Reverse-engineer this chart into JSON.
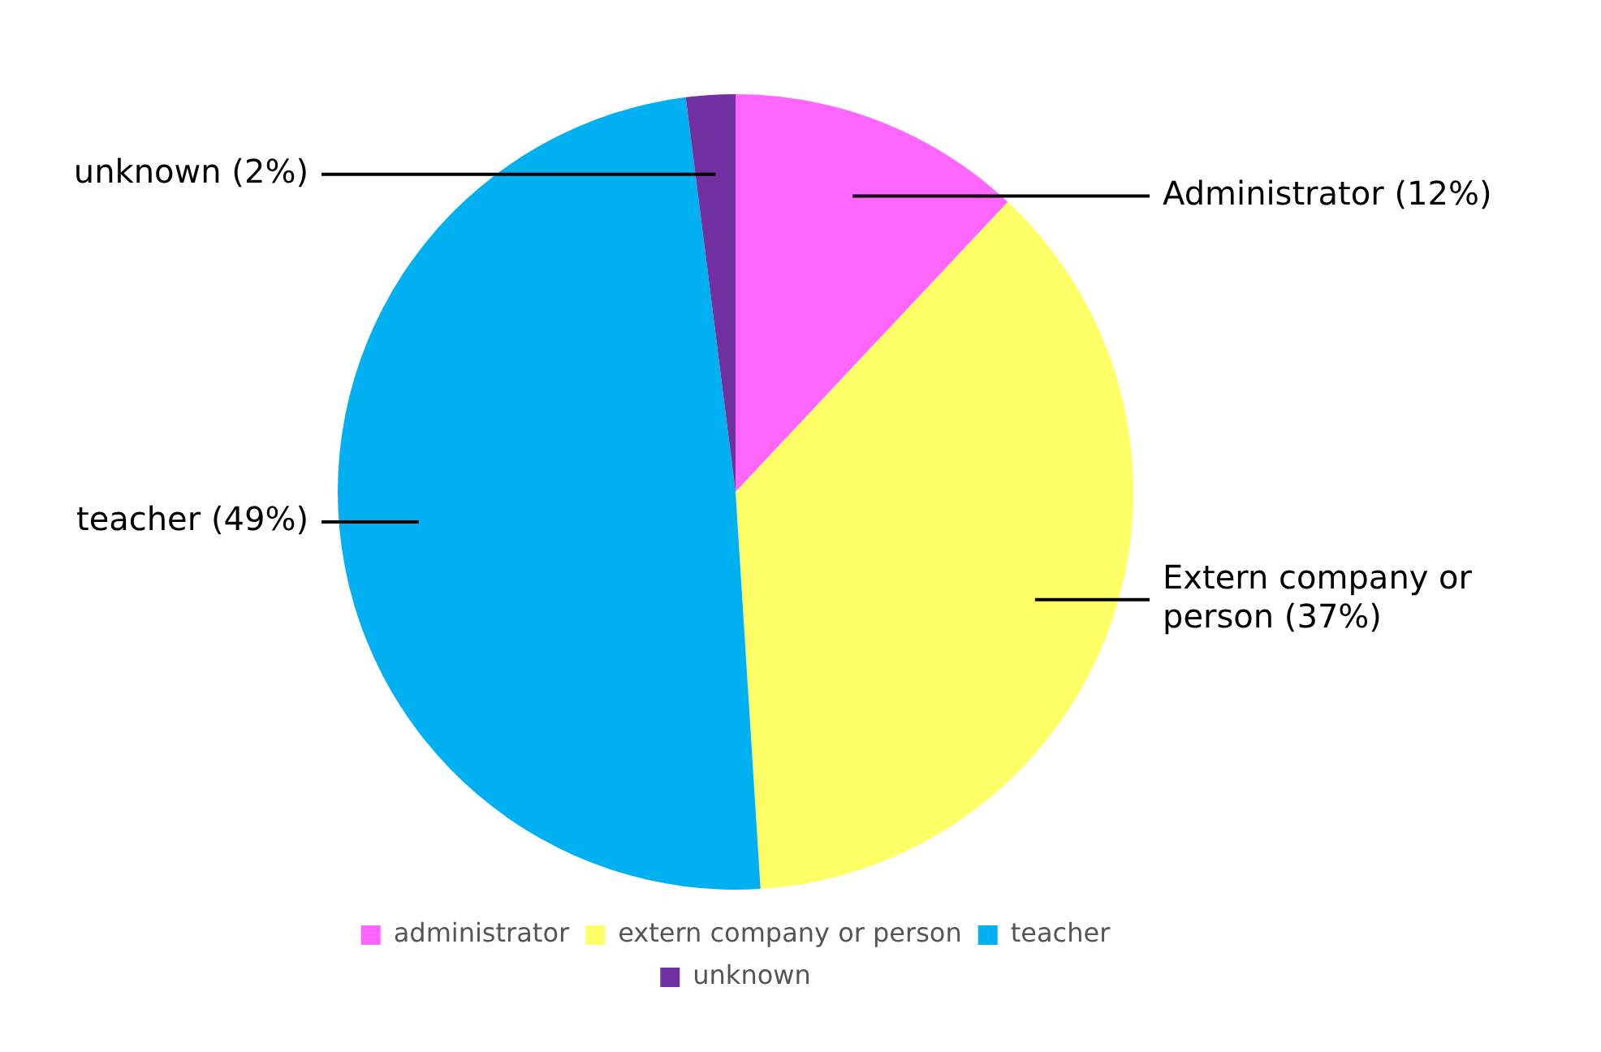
{
  "chart_data": {
    "type": "pie",
    "categories": [
      "administrator",
      "extern company or person",
      "teacher",
      "unknown"
    ],
    "values": [
      12,
      37,
      49,
      2
    ],
    "colors": [
      "#ff66ff",
      "#ffff66",
      "#00b0f0",
      "#7030a0"
    ],
    "value_labels": [
      "Administrator (12%)",
      "Extern company or person (37%)",
      "teacher (49%)",
      "unknown (2%)"
    ],
    "legend": "bottom"
  }
}
